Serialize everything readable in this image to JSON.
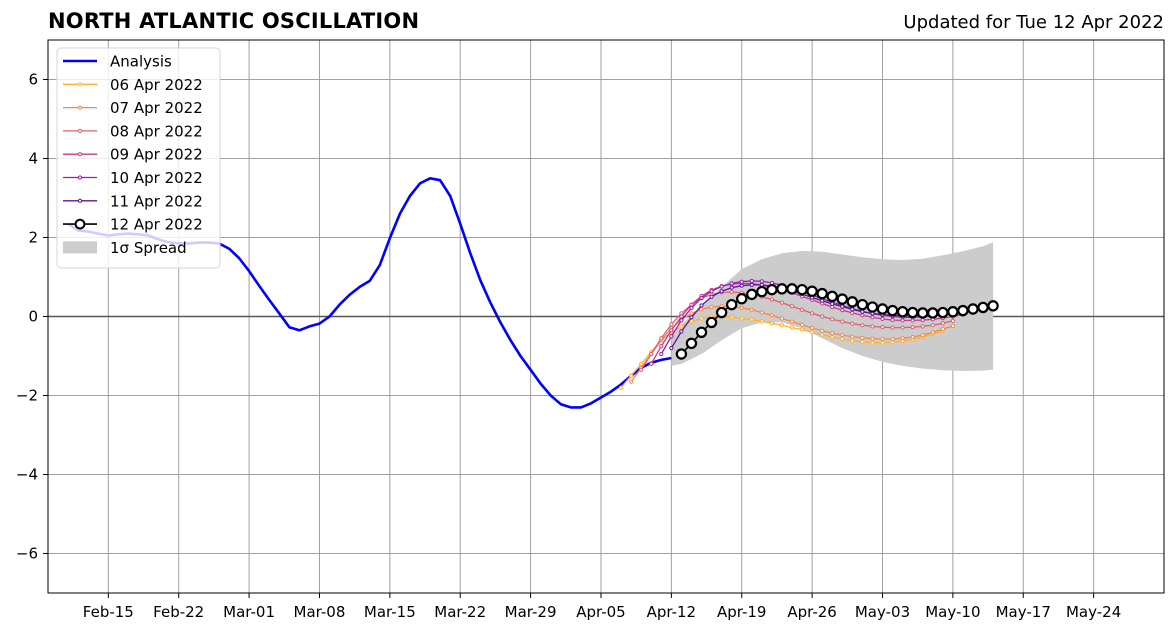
{
  "header": {
    "title": "NORTH ATLANTIC OSCILLATION",
    "updated": "Updated for Tue 12 Apr 2022"
  },
  "chart_data": {
    "type": "line",
    "title": "NORTH ATLANTIC OSCILLATION",
    "subtitle": "Updated for Tue 12 Apr 2022",
    "xlabel": "",
    "ylabel": "",
    "x_range_days": [
      "2022-02-09",
      "2022-05-31"
    ],
    "ylim": [
      -7,
      7
    ],
    "yticks": [
      -6,
      -4,
      -2,
      0,
      2,
      4,
      6
    ],
    "ytick_labels": [
      "−6",
      "−4",
      "−2",
      "0",
      "2",
      "4",
      "6"
    ],
    "xticks": [
      "2022-02-15",
      "2022-02-22",
      "2022-03-01",
      "2022-03-08",
      "2022-03-15",
      "2022-03-22",
      "2022-03-29",
      "2022-04-05",
      "2022-04-12",
      "2022-04-19",
      "2022-04-26",
      "2022-05-03",
      "2022-05-10",
      "2022-05-17",
      "2022-05-24"
    ],
    "xtick_labels": [
      "Feb-15",
      "Feb-22",
      "Mar-01",
      "Mar-08",
      "Mar-15",
      "Mar-22",
      "Mar-29",
      "Apr-05",
      "Apr-12",
      "Apr-19",
      "Apr-26",
      "May-03",
      "May-10",
      "May-17",
      "May-24"
    ],
    "grid": true,
    "legend_position": "top-left",
    "colors": {
      "analysis": "#0000ff",
      "spread": "#cccccc",
      "f0406": "#ffb02e",
      "f0407": "#f4884a",
      "f0408": "#e05e70",
      "f0409": "#c83a8e",
      "f0410": "#9a1ea8",
      "f0411": "#5d159c",
      "f0412": "#000000"
    },
    "analysis": {
      "name": "Analysis",
      "x": [
        "2022-02-11",
        "2022-02-12",
        "2022-02-13",
        "2022-02-14",
        "2022-02-15",
        "2022-02-16",
        "2022-02-17",
        "2022-02-18",
        "2022-02-19",
        "2022-02-20",
        "2022-02-21",
        "2022-02-22",
        "2022-02-23",
        "2022-02-24",
        "2022-02-25",
        "2022-02-26",
        "2022-02-27",
        "2022-02-28",
        "2022-03-01",
        "2022-03-02",
        "2022-03-03",
        "2022-03-04",
        "2022-03-05",
        "2022-03-06",
        "2022-03-07",
        "2022-03-08",
        "2022-03-09",
        "2022-03-10",
        "2022-03-11",
        "2022-03-12",
        "2022-03-13",
        "2022-03-14",
        "2022-03-15",
        "2022-03-16",
        "2022-03-17",
        "2022-03-18",
        "2022-03-19",
        "2022-03-20",
        "2022-03-21",
        "2022-03-22",
        "2022-03-23",
        "2022-03-24",
        "2022-03-25",
        "2022-03-26",
        "2022-03-27",
        "2022-03-28",
        "2022-03-29",
        "2022-03-30",
        "2022-03-31",
        "2022-04-01",
        "2022-04-02",
        "2022-04-03",
        "2022-04-04",
        "2022-04-05",
        "2022-04-06",
        "2022-04-07",
        "2022-04-08",
        "2022-04-09",
        "2022-04-10",
        "2022-04-11",
        "2022-04-12"
      ],
      "y": [
        2.35,
        2.18,
        2.15,
        2.1,
        2.05,
        2.08,
        2.1,
        2.08,
        2.05,
        1.95,
        1.88,
        1.85,
        1.85,
        1.87,
        1.87,
        1.85,
        1.72,
        1.48,
        1.15,
        0.78,
        0.42,
        0.08,
        -0.27,
        -0.35,
        -0.25,
        -0.18,
        0.0,
        0.3,
        0.55,
        0.75,
        0.9,
        1.3,
        1.98,
        2.6,
        3.05,
        3.37,
        3.5,
        3.45,
        3.05,
        2.35,
        1.6,
        0.92,
        0.35,
        -0.15,
        -0.6,
        -1.0,
        -1.35,
        -1.7,
        -2.0,
        -2.22,
        -2.3,
        -2.3,
        -2.2,
        -2.05,
        -1.9,
        -1.72,
        -1.5,
        -1.3,
        -1.17,
        -1.1,
        -1.05
      ]
    },
    "spread": {
      "name": "1σ Spread",
      "x": [
        "2022-04-12",
        "2022-04-13",
        "2022-04-15",
        "2022-04-17",
        "2022-04-19",
        "2022-04-21",
        "2022-04-23",
        "2022-04-25",
        "2022-04-27",
        "2022-04-29",
        "2022-05-01",
        "2022-05-03",
        "2022-05-05",
        "2022-05-07",
        "2022-05-09",
        "2022-05-11",
        "2022-05-13",
        "2022-05-14"
      ],
      "upper": [
        -0.5,
        -0.2,
        0.25,
        0.75,
        1.2,
        1.45,
        1.6,
        1.66,
        1.64,
        1.57,
        1.5,
        1.45,
        1.43,
        1.46,
        1.55,
        1.65,
        1.78,
        1.88
      ],
      "lower": [
        -1.25,
        -1.2,
        -0.95,
        -0.6,
        -0.3,
        -0.15,
        -0.15,
        -0.3,
        -0.55,
        -0.8,
        -1.0,
        -1.15,
        -1.25,
        -1.32,
        -1.36,
        -1.38,
        -1.37,
        -1.35
      ]
    },
    "series": [
      {
        "name": "06 Apr 2022",
        "x": [
          "2022-04-07",
          "2022-04-08",
          "2022-04-09",
          "2022-04-10",
          "2022-04-11",
          "2022-04-12",
          "2022-04-13",
          "2022-04-14",
          "2022-04-15",
          "2022-04-16",
          "2022-04-17",
          "2022-04-18",
          "2022-04-19",
          "2022-04-20",
          "2022-04-21",
          "2022-04-22",
          "2022-04-23",
          "2022-04-24",
          "2022-04-25",
          "2022-04-26",
          "2022-04-27",
          "2022-04-28",
          "2022-04-29",
          "2022-04-30",
          "2022-05-01",
          "2022-05-02",
          "2022-05-03",
          "2022-05-04",
          "2022-05-05",
          "2022-05-06",
          "2022-05-07",
          "2022-05-08",
          "2022-05-09"
        ],
        "y": [
          -1.8,
          -1.5,
          -1.2,
          -0.9,
          -0.6,
          -0.4,
          -0.25,
          -0.12,
          -0.05,
          0.0,
          0.0,
          -0.02,
          -0.05,
          -0.08,
          -0.12,
          -0.17,
          -0.22,
          -0.28,
          -0.33,
          -0.4,
          -0.46,
          -0.52,
          -0.57,
          -0.61,
          -0.64,
          -0.66,
          -0.66,
          -0.65,
          -0.62,
          -0.58,
          -0.52,
          -0.44,
          -0.36
        ]
      },
      {
        "name": "07 Apr 2022",
        "x": [
          "2022-04-08",
          "2022-04-09",
          "2022-04-10",
          "2022-04-11",
          "2022-04-12",
          "2022-04-13",
          "2022-04-14",
          "2022-04-15",
          "2022-04-16",
          "2022-04-17",
          "2022-04-18",
          "2022-04-19",
          "2022-04-20",
          "2022-04-21",
          "2022-04-22",
          "2022-04-23",
          "2022-04-24",
          "2022-04-25",
          "2022-04-26",
          "2022-04-27",
          "2022-04-28",
          "2022-04-29",
          "2022-04-30",
          "2022-05-01",
          "2022-05-02",
          "2022-05-03",
          "2022-05-04",
          "2022-05-05",
          "2022-05-06",
          "2022-05-07",
          "2022-05-08",
          "2022-05-09",
          "2022-05-10"
        ],
        "y": [
          -1.65,
          -1.3,
          -0.95,
          -0.6,
          -0.3,
          -0.08,
          0.08,
          0.18,
          0.24,
          0.26,
          0.25,
          0.22,
          0.17,
          0.1,
          0.03,
          -0.05,
          -0.13,
          -0.21,
          -0.29,
          -0.36,
          -0.42,
          -0.47,
          -0.51,
          -0.54,
          -0.56,
          -0.57,
          -0.57,
          -0.55,
          -0.52,
          -0.47,
          -0.4,
          -0.32,
          -0.24
        ]
      },
      {
        "name": "08 Apr 2022",
        "x": [
          "2022-04-09",
          "2022-04-10",
          "2022-04-11",
          "2022-04-12",
          "2022-04-13",
          "2022-04-14",
          "2022-04-15",
          "2022-04-16",
          "2022-04-17",
          "2022-04-18",
          "2022-04-19",
          "2022-04-20",
          "2022-04-21",
          "2022-04-22",
          "2022-04-23",
          "2022-04-24",
          "2022-04-25",
          "2022-04-26",
          "2022-04-27",
          "2022-04-28",
          "2022-04-29",
          "2022-04-30",
          "2022-05-01",
          "2022-05-02",
          "2022-05-03",
          "2022-05-04",
          "2022-05-05",
          "2022-05-06",
          "2022-05-07",
          "2022-05-08",
          "2022-05-09",
          "2022-05-10"
        ],
        "y": [
          -1.35,
          -0.95,
          -0.55,
          -0.2,
          0.08,
          0.3,
          0.46,
          0.56,
          0.61,
          0.62,
          0.6,
          0.56,
          0.5,
          0.43,
          0.35,
          0.26,
          0.17,
          0.08,
          0.0,
          -0.07,
          -0.13,
          -0.18,
          -0.22,
          -0.25,
          -0.27,
          -0.28,
          -0.28,
          -0.27,
          -0.25,
          -0.22,
          -0.17,
          -0.11
        ]
      },
      {
        "name": "09 Apr 2022",
        "x": [
          "2022-04-10",
          "2022-04-11",
          "2022-04-12",
          "2022-04-13",
          "2022-04-14",
          "2022-04-15",
          "2022-04-16",
          "2022-04-17",
          "2022-04-18",
          "2022-04-19",
          "2022-04-20",
          "2022-04-21",
          "2022-04-22",
          "2022-04-23",
          "2022-04-24",
          "2022-04-25",
          "2022-04-26",
          "2022-04-27",
          "2022-04-28",
          "2022-04-29",
          "2022-04-30",
          "2022-05-01",
          "2022-05-02",
          "2022-05-03",
          "2022-05-04",
          "2022-05-05",
          "2022-05-06",
          "2022-05-07",
          "2022-05-08",
          "2022-05-09",
          "2022-05-10",
          "2022-05-11"
        ],
        "y": [
          -1.2,
          -0.75,
          -0.35,
          0.0,
          0.3,
          0.52,
          0.67,
          0.77,
          0.82,
          0.84,
          0.83,
          0.8,
          0.75,
          0.68,
          0.6,
          0.51,
          0.42,
          0.33,
          0.24,
          0.16,
          0.09,
          0.03,
          -0.02,
          -0.06,
          -0.09,
          -0.1,
          -0.1,
          -0.09,
          -0.07,
          -0.04,
          0.0,
          0.05
        ]
      },
      {
        "name": "10 Apr 2022",
        "x": [
          "2022-04-11",
          "2022-04-12",
          "2022-04-13",
          "2022-04-14",
          "2022-04-15",
          "2022-04-16",
          "2022-04-17",
          "2022-04-18",
          "2022-04-19",
          "2022-04-20",
          "2022-04-21",
          "2022-04-22",
          "2022-04-23",
          "2022-04-24",
          "2022-04-25",
          "2022-04-26",
          "2022-04-27",
          "2022-04-28",
          "2022-04-29",
          "2022-04-30",
          "2022-05-01",
          "2022-05-02",
          "2022-05-03",
          "2022-05-04",
          "2022-05-05",
          "2022-05-06",
          "2022-05-07",
          "2022-05-08",
          "2022-05-09",
          "2022-05-10",
          "2022-05-11"
        ],
        "y": [
          -0.95,
          -0.5,
          -0.1,
          0.22,
          0.47,
          0.64,
          0.76,
          0.84,
          0.88,
          0.9,
          0.89,
          0.85,
          0.79,
          0.72,
          0.63,
          0.54,
          0.45,
          0.36,
          0.28,
          0.2,
          0.13,
          0.07,
          0.03,
          0.0,
          -0.02,
          -0.02,
          -0.01,
          0.01,
          0.04,
          0.07,
          0.11
        ]
      },
      {
        "name": "11 Apr 2022",
        "x": [
          "2022-04-12",
          "2022-04-13",
          "2022-04-14",
          "2022-04-15",
          "2022-04-16",
          "2022-04-17",
          "2022-04-18",
          "2022-04-19",
          "2022-04-20",
          "2022-04-21",
          "2022-04-22",
          "2022-04-23",
          "2022-04-24",
          "2022-04-25",
          "2022-04-26",
          "2022-04-27",
          "2022-04-28",
          "2022-04-29",
          "2022-04-30",
          "2022-05-01",
          "2022-05-02",
          "2022-05-03",
          "2022-05-04",
          "2022-05-05",
          "2022-05-06",
          "2022-05-07",
          "2022-05-08",
          "2022-05-09",
          "2022-05-10",
          "2022-05-11",
          "2022-05-12"
        ],
        "y": [
          -0.8,
          -0.38,
          -0.02,
          0.28,
          0.5,
          0.64,
          0.73,
          0.78,
          0.8,
          0.8,
          0.77,
          0.72,
          0.65,
          0.57,
          0.48,
          0.4,
          0.32,
          0.25,
          0.18,
          0.12,
          0.08,
          0.05,
          0.03,
          0.02,
          0.02,
          0.03,
          0.05,
          0.08,
          0.11,
          0.15,
          0.19
        ]
      },
      {
        "name": "12 Apr 2022",
        "x": [
          "2022-04-13",
          "2022-04-14",
          "2022-04-15",
          "2022-04-16",
          "2022-04-17",
          "2022-04-18",
          "2022-04-19",
          "2022-04-20",
          "2022-04-21",
          "2022-04-22",
          "2022-04-23",
          "2022-04-24",
          "2022-04-25",
          "2022-04-26",
          "2022-04-27",
          "2022-04-28",
          "2022-04-29",
          "2022-04-30",
          "2022-05-01",
          "2022-05-02",
          "2022-05-03",
          "2022-05-04",
          "2022-05-05",
          "2022-05-06",
          "2022-05-07",
          "2022-05-08",
          "2022-05-09",
          "2022-05-10",
          "2022-05-11",
          "2022-05-12",
          "2022-05-13",
          "2022-05-14"
        ],
        "y": [
          -0.95,
          -0.68,
          -0.4,
          -0.15,
          0.1,
          0.3,
          0.45,
          0.56,
          0.63,
          0.68,
          0.7,
          0.7,
          0.68,
          0.64,
          0.58,
          0.51,
          0.44,
          0.37,
          0.3,
          0.24,
          0.19,
          0.15,
          0.12,
          0.1,
          0.09,
          0.09,
          0.1,
          0.12,
          0.15,
          0.19,
          0.23,
          0.27
        ]
      }
    ]
  }
}
